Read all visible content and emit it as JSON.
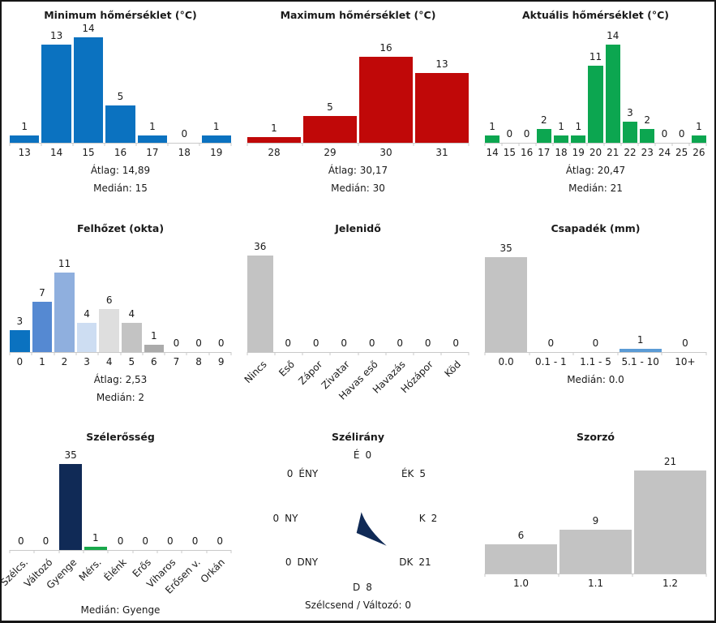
{
  "chart_data": [
    {
      "id": "min_temp",
      "type": "bar",
      "title": "Minimum hőmérséklet (°C)",
      "categories": [
        "13",
        "14",
        "15",
        "16",
        "17",
        "18",
        "19"
      ],
      "values": [
        1,
        13,
        14,
        5,
        1,
        0,
        1
      ],
      "bar_color": "#0b72c0",
      "footer": [
        "Átlag: 14,89",
        "Medián: 15"
      ]
    },
    {
      "id": "max_temp",
      "type": "bar",
      "title": "Maximum hőmérséklet (°C)",
      "categories": [
        "28",
        "29",
        "30",
        "31"
      ],
      "values": [
        1,
        5,
        16,
        13
      ],
      "bar_color": "#c00808",
      "footer": [
        "Átlag: 30,17",
        "Medián: 30"
      ]
    },
    {
      "id": "current_temp",
      "type": "bar",
      "title": "Aktuális hőmérséklet (°C)",
      "categories": [
        "14",
        "15",
        "16",
        "17",
        "18",
        "19",
        "20",
        "21",
        "22",
        "23",
        "24",
        "25",
        "26"
      ],
      "values": [
        1,
        0,
        0,
        2,
        1,
        1,
        11,
        14,
        3,
        2,
        0,
        0,
        1
      ],
      "bar_color": "#0ca650",
      "footer": [
        "Átlag: 20,47",
        "Medián: 21"
      ]
    },
    {
      "id": "cloud",
      "type": "bar",
      "title": "Felhőzet (okta)",
      "categories": [
        "0",
        "1",
        "2",
        "3",
        "4",
        "5",
        "6",
        "7",
        "8",
        "9"
      ],
      "values": [
        3,
        7,
        11,
        4,
        6,
        4,
        1,
        0,
        0,
        0
      ],
      "bar_colors": [
        "#0b72c0",
        "#5589d2",
        "#8fafde",
        "#cdddf2",
        "#dedede",
        "#c3c3c3",
        "#ababab",
        "#c3c3c3",
        "#c3c3c3",
        "#c3c3c3"
      ],
      "footer": [
        "Átlag: 2,53",
        "Medián: 2"
      ]
    },
    {
      "id": "weather",
      "type": "bar",
      "title": "Jelenidő",
      "categories": [
        "Nincs",
        "Eső",
        "Zápor",
        "Zivatar",
        "Havas eső",
        "Havazás",
        "Hózápor",
        "Köd"
      ],
      "values": [
        36,
        0,
        0,
        0,
        0,
        0,
        0,
        0
      ],
      "bar_color": "#c3c3c3",
      "footer": []
    },
    {
      "id": "precip",
      "type": "bar",
      "title": "Csapadék (mm)",
      "categories": [
        "0.0",
        "0.1 - 1",
        "1.1 - 5",
        "5.1 - 10",
        "10+"
      ],
      "values": [
        35,
        0,
        0,
        1,
        0
      ],
      "bar_colors": [
        "#c3c3c3",
        "#c3c3c3",
        "#c3c3c3",
        "#5b9bd5",
        "#c3c3c3"
      ],
      "footer": [
        "Medián: 0.0"
      ]
    },
    {
      "id": "wind_strength",
      "type": "bar",
      "title": "Szélerősség",
      "categories": [
        "Szélcs.",
        "Változó",
        "Gyenge",
        "Mérs.",
        "Élénk",
        "Erős",
        "Viharos",
        "Erősen v.",
        "Orkán"
      ],
      "values": [
        0,
        0,
        35,
        1,
        0,
        0,
        0,
        0,
        0
      ],
      "bar_colors": [
        "#c3c3c3",
        "#c3c3c3",
        "#102a56",
        "#18a84b",
        "#c3c3c3",
        "#c3c3c3",
        "#c3c3c3",
        "#c3c3c3",
        "#c3c3c3"
      ],
      "footer": [
        "Medián: Gyenge"
      ]
    },
    {
      "id": "wind_dir",
      "type": "compass",
      "title": "Szélirány",
      "directions": [
        {
          "dir": "n",
          "label": "É",
          "value": 0,
          "value_first": false
        },
        {
          "dir": "ne",
          "label": "ÉK",
          "value": 5,
          "value_first": false
        },
        {
          "dir": "e",
          "label": "K",
          "value": 2,
          "value_first": false
        },
        {
          "dir": "se",
          "label": "DK",
          "value": 21,
          "value_first": false
        },
        {
          "dir": "s",
          "label": "D",
          "value": 8,
          "value_first": false
        },
        {
          "dir": "sw",
          "label": "DNY",
          "value": 0,
          "value_first": true
        },
        {
          "dir": "w",
          "label": "NY",
          "value": 0,
          "value_first": true
        },
        {
          "dir": "nw",
          "label": "ÉNY",
          "value": 0,
          "value_first": true
        }
      ],
      "arrow_color": "#102a56",
      "arrow_points_to": "DK",
      "footer": [
        "Szélcsend / Változó: 0"
      ]
    },
    {
      "id": "multiplier",
      "type": "bar",
      "title": "Szorzó",
      "categories": [
        "1.0",
        "1.1",
        "1.2"
      ],
      "values": [
        6,
        9,
        21
      ],
      "bar_color": "#c3c3c3",
      "footer": []
    }
  ]
}
